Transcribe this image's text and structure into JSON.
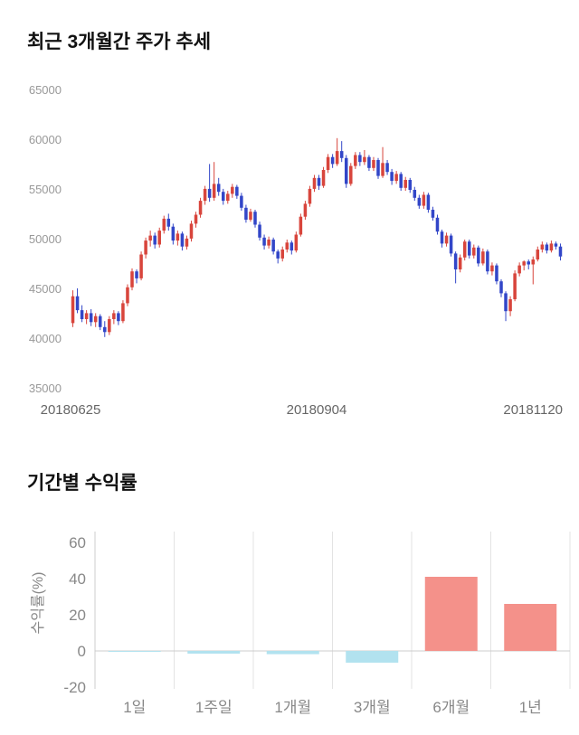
{
  "chart_data": [
    {
      "type": "candlestick",
      "title": "최근 3개월간 주가 추세",
      "ylim": [
        35000,
        65000
      ],
      "y_ticks": [
        65000,
        60000,
        55000,
        50000,
        45000,
        40000,
        35000
      ],
      "x_tick_labels": [
        "20180625",
        "20180904",
        "20181120"
      ],
      "up_color": "#d8453c",
      "down_color": "#3246c8",
      "tick_color": "#999999",
      "x_tick_color": "#666666",
      "candles": [
        [
          41600,
          44900,
          41200,
          44300
        ],
        [
          44300,
          45100,
          42600,
          42900
        ],
        [
          42900,
          43400,
          41700,
          42000
        ],
        [
          42000,
          42900,
          41500,
          42600
        ],
        [
          42600,
          43000,
          41300,
          41700
        ],
        [
          41700,
          42600,
          41200,
          42300
        ],
        [
          42300,
          42500,
          40900,
          41200
        ],
        [
          41200,
          41800,
          40200,
          40700
        ],
        [
          40700,
          42300,
          40400,
          42000
        ],
        [
          42000,
          42900,
          41500,
          42600
        ],
        [
          42600,
          42800,
          41400,
          41800
        ],
        [
          41800,
          43900,
          41600,
          43600
        ],
        [
          43600,
          45500,
          43300,
          45200
        ],
        [
          45200,
          47100,
          44900,
          46800
        ],
        [
          46800,
          47000,
          45600,
          46100
        ],
        [
          46100,
          48800,
          45900,
          48500
        ],
        [
          48500,
          50200,
          48100,
          49900
        ],
        [
          49900,
          50900,
          49300,
          50400
        ],
        [
          50400,
          50700,
          49100,
          49500
        ],
        [
          49500,
          51200,
          49200,
          50900
        ],
        [
          50900,
          52400,
          50600,
          52100
        ],
        [
          52100,
          52600,
          50900,
          51300
        ],
        [
          51300,
          51600,
          49500,
          49900
        ],
        [
          49900,
          50900,
          49400,
          50600
        ],
        [
          50600,
          50800,
          48900,
          49300
        ],
        [
          49300,
          50400,
          49000,
          50100
        ],
        [
          50100,
          51900,
          49800,
          51600
        ],
        [
          51600,
          52800,
          51200,
          52500
        ],
        [
          52500,
          54200,
          52200,
          53900
        ],
        [
          53900,
          55400,
          53500,
          55100
        ],
        [
          55100,
          57600,
          53800,
          54200
        ],
        [
          54200,
          57800,
          53900,
          55600
        ],
        [
          55600,
          56200,
          54400,
          54800
        ],
        [
          54800,
          55100,
          53500,
          53900
        ],
        [
          53900,
          54900,
          53600,
          54600
        ],
        [
          54600,
          55600,
          54200,
          55300
        ],
        [
          55300,
          55500,
          54100,
          54400
        ],
        [
          54400,
          54700,
          52900,
          53200
        ],
        [
          53200,
          53500,
          51700,
          52000
        ],
        [
          52000,
          53100,
          51800,
          52800
        ],
        [
          52800,
          53000,
          51200,
          51500
        ],
        [
          51500,
          51800,
          49900,
          50200
        ],
        [
          50200,
          50500,
          49000,
          49400
        ],
        [
          49400,
          50300,
          49100,
          50000
        ],
        [
          50000,
          50200,
          48500,
          48800
        ],
        [
          48800,
          49000,
          47600,
          48100
        ],
        [
          48100,
          49300,
          47800,
          49000
        ],
        [
          49000,
          50000,
          48700,
          49700
        ],
        [
          49700,
          49900,
          48500,
          48900
        ],
        [
          48900,
          50800,
          48700,
          50500
        ],
        [
          50500,
          52600,
          50300,
          52300
        ],
        [
          52300,
          53900,
          52000,
          53600
        ],
        [
          53600,
          55400,
          53300,
          55100
        ],
        [
          55100,
          56500,
          54800,
          56200
        ],
        [
          56200,
          56500,
          55000,
          55400
        ],
        [
          55400,
          57300,
          55200,
          57000
        ],
        [
          57000,
          58600,
          56700,
          58300
        ],
        [
          58300,
          58600,
          57200,
          57600
        ],
        [
          57600,
          60200,
          57400,
          58900
        ],
        [
          58900,
          59900,
          57800,
          58200
        ],
        [
          58200,
          58500,
          55200,
          55600
        ],
        [
          55600,
          57700,
          55400,
          57400
        ],
        [
          57400,
          58800,
          57100,
          58500
        ],
        [
          58500,
          58800,
          57400,
          57800
        ],
        [
          57800,
          59000,
          57500,
          58300
        ],
        [
          58300,
          58500,
          56900,
          57200
        ],
        [
          57200,
          58300,
          56900,
          58000
        ],
        [
          58000,
          58200,
          56100,
          56400
        ],
        [
          56400,
          59300,
          56200,
          57700
        ],
        [
          57700,
          58000,
          56500,
          56800
        ],
        [
          56800,
          57100,
          55500,
          55900
        ],
        [
          55900,
          56900,
          55600,
          56600
        ],
        [
          56600,
          56800,
          54900,
          55200
        ],
        [
          55200,
          56300,
          54900,
          56000
        ],
        [
          56000,
          56200,
          54700,
          55000
        ],
        [
          55000,
          55300,
          53900,
          54200
        ],
        [
          54200,
          54500,
          53100,
          53400
        ],
        [
          53400,
          54800,
          53100,
          54500
        ],
        [
          54500,
          54700,
          52700,
          53000
        ],
        [
          53000,
          53300,
          51900,
          52200
        ],
        [
          52200,
          52500,
          50500,
          50800
        ],
        [
          50800,
          51000,
          49200,
          49600
        ],
        [
          49600,
          50700,
          49300,
          50400
        ],
        [
          50400,
          50600,
          48300,
          48600
        ],
        [
          48600,
          48800,
          45600,
          47000
        ],
        [
          47000,
          48500,
          46700,
          48200
        ],
        [
          48200,
          50000,
          47900,
          49800
        ],
        [
          49800,
          50000,
          48100,
          48400
        ],
        [
          48400,
          49500,
          48100,
          49200
        ],
        [
          49200,
          49400,
          47300,
          47600
        ],
        [
          47600,
          49100,
          47400,
          48800
        ],
        [
          48800,
          49000,
          46500,
          46800
        ],
        [
          46800,
          47700,
          46400,
          47400
        ],
        [
          47400,
          47600,
          45500,
          45800
        ],
        [
          45800,
          46000,
          44200,
          44600
        ],
        [
          44600,
          44800,
          41800,
          42800
        ],
        [
          42800,
          44300,
          42300,
          44000
        ],
        [
          44000,
          46900,
          43800,
          46600
        ],
        [
          46600,
          47700,
          46300,
          47400
        ],
        [
          47400,
          47900,
          46900,
          47800
        ],
        [
          47800,
          48000,
          47000,
          47500
        ],
        [
          47500,
          48300,
          45500,
          48000
        ],
        [
          48000,
          49300,
          47800,
          49000
        ],
        [
          49000,
          49800,
          48700,
          49500
        ],
        [
          49500,
          49700,
          48600,
          48900
        ],
        [
          48900,
          49900,
          48700,
          49600
        ],
        [
          49600,
          49800,
          49000,
          49300
        ],
        [
          49300,
          49600,
          47900,
          48300
        ]
      ]
    },
    {
      "type": "bar",
      "title": "기간별 수익률",
      "ylabel": "수익률(%)",
      "categories": [
        "1일",
        "1주일",
        "1개월",
        "3개월",
        "6개월",
        "1년"
      ],
      "values": [
        -0.2,
        -1.5,
        -1.8,
        -6.5,
        41,
        26
      ],
      "y_ticks": [
        60,
        40,
        20,
        0,
        -20
      ],
      "ylim": [
        -20,
        60
      ],
      "positive_color": "#f4918a",
      "negative_color": "#b2e2ef",
      "grid_color": "#e3e3e3",
      "axis_color": "#cccccc",
      "tick_color": "#888888"
    }
  ]
}
